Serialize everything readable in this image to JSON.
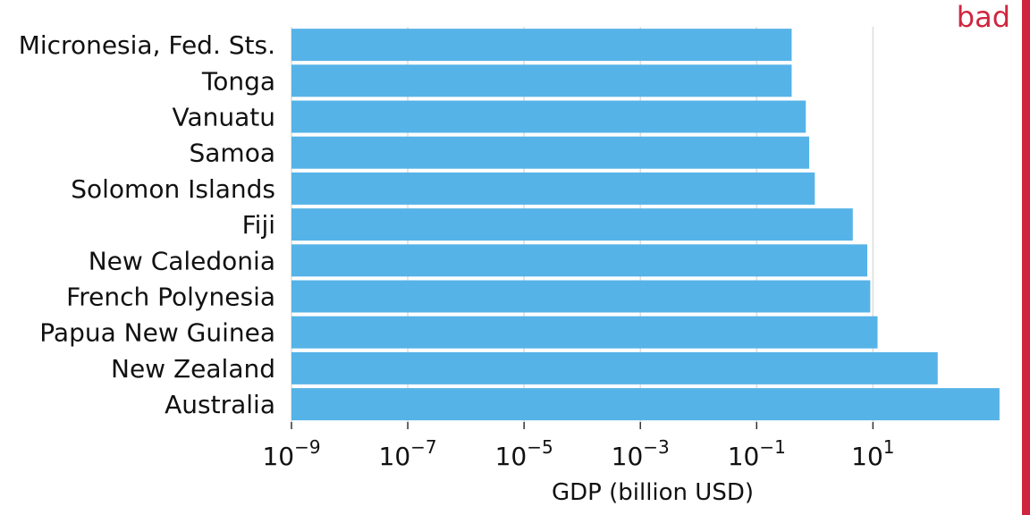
{
  "badge": {
    "label": "bad",
    "color": "#d0253f"
  },
  "colors": {
    "bar": "#56b3e8",
    "grid": "#dddddd",
    "axis": "#333333"
  },
  "chart_data": {
    "type": "bar",
    "orientation": "horizontal",
    "title": "",
    "xlabel": "GDP (billion USD)",
    "ylabel": "",
    "x_scale": "log10",
    "xlim": [
      1e-09,
      2000
    ],
    "grid": "vertical",
    "categories": [
      "Micronesia, Fed. Sts.",
      "Tonga",
      "Vanuatu",
      "Samoa",
      "Solomon Islands",
      "Fiji",
      "New Caledonia",
      "French Polynesia",
      "Papua New Guinea",
      "New Zealand",
      "Australia"
    ],
    "values": [
      0.4,
      0.4,
      0.7,
      0.8,
      1.0,
      4.5,
      8.0,
      9.0,
      12.0,
      130.0,
      1500.0
    ],
    "x_ticks": [
      {
        "base": "10",
        "exp": "−9",
        "value": 1e-09
      },
      {
        "base": "10",
        "exp": "−7",
        "value": 1e-07
      },
      {
        "base": "10",
        "exp": "−5",
        "value": 1e-05
      },
      {
        "base": "10",
        "exp": "−3",
        "value": 0.001
      },
      {
        "base": "10",
        "exp": "−1",
        "value": 0.1
      },
      {
        "base": "10",
        "exp": "1",
        "value": 10
      }
    ]
  }
}
